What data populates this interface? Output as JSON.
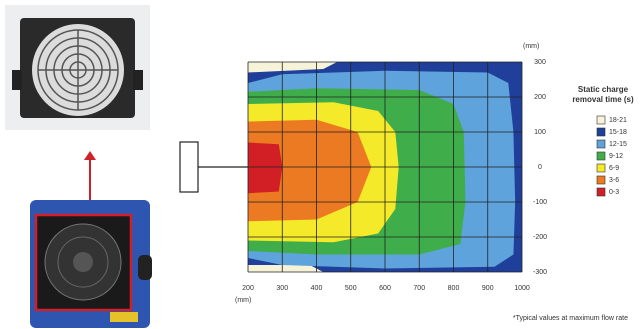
{
  "chart_data": {
    "type": "contour",
    "x_label": "(mm)",
    "y_label": "(mm)",
    "legend_title": "Static charge removal time (s)",
    "footnote": "*Typical values at maximum flow rate",
    "xlim": [
      200,
      1000
    ],
    "ylim": [
      -300,
      300
    ],
    "xticks": [
      200,
      300,
      400,
      500,
      600,
      700,
      800,
      900,
      1000
    ],
    "yticks": [
      300,
      200,
      100,
      0,
      -100,
      -200,
      -300
    ],
    "grid": true,
    "series": [
      {
        "name": "18-21",
        "color": "#f6f3d8",
        "x": [
          200,
          1000,
          1000,
          200
        ],
        "y": [
          300,
          300,
          -300,
          -300
        ]
      },
      {
        "name": "15-18",
        "color": "#1f3f9a",
        "x": [
          200,
          420,
          460,
          1000,
          1000,
          420,
          380,
          200
        ],
        "y": [
          270,
          280,
          300,
          300,
          -300,
          -300,
          -280,
          -280
        ]
      },
      {
        "name": "12-15",
        "color": "#5ea3dc",
        "x": [
          200,
          300,
          600,
          900,
          960,
          975,
          980,
          975,
          920,
          600,
          300,
          200
        ],
        "y": [
          240,
          265,
          275,
          270,
          240,
          100,
          -100,
          -250,
          -285,
          -290,
          -280,
          -260
        ]
      },
      {
        "name": "9-12",
        "color": "#3fae4a",
        "x": [
          200,
          400,
          700,
          800,
          830,
          835,
          820,
          700,
          400,
          200
        ],
        "y": [
          215,
          225,
          220,
          180,
          100,
          -100,
          -220,
          -250,
          -250,
          -240
        ]
      },
      {
        "name": "6-9",
        "color": "#f4ea2a",
        "x": [
          200,
          450,
          580,
          630,
          640,
          630,
          580,
          450,
          200
        ],
        "y": [
          180,
          185,
          160,
          100,
          0,
          -120,
          -190,
          -215,
          -210
        ]
      },
      {
        "name": "3-6",
        "color": "#ec7a22",
        "x": [
          200,
          400,
          520,
          560,
          520,
          400,
          200
        ],
        "y": [
          130,
          135,
          100,
          0,
          -100,
          -150,
          -155
        ]
      },
      {
        "name": "0-3",
        "color": "#d21f26",
        "x": [
          200,
          290,
          300,
          290,
          200
        ],
        "y": [
          70,
          65,
          0,
          -70,
          -75
        ]
      }
    ]
  }
}
